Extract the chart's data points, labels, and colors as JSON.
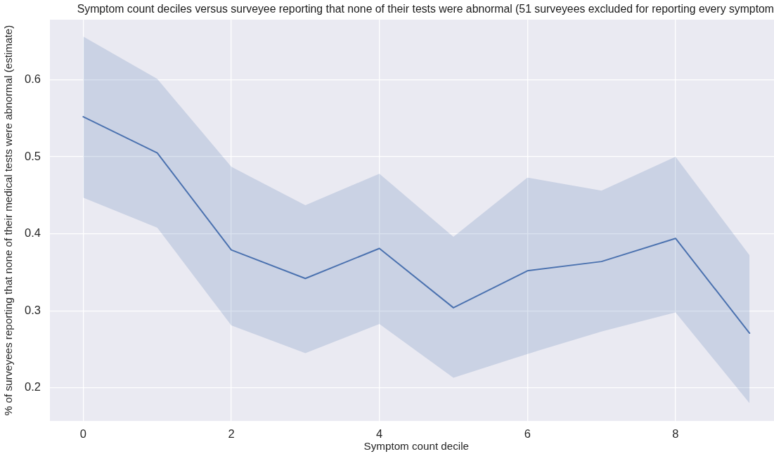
{
  "chart_data": {
    "type": "line",
    "title": "Symptom count deciles versus surveyee reporting that none of their tests were abnormal (51 surveyees excluded for reporting every symptom",
    "xlabel": "Symptom count decile",
    "ylabel": "% of surveyees reporting that none of their medical tests were abnormal (estimate)",
    "x": [
      0,
      1,
      2,
      3,
      4,
      5,
      6,
      7,
      8,
      9
    ],
    "series": [
      {
        "color": "#4c72b0",
        "values": [
          0.552,
          0.505,
          0.379,
          0.342,
          0.381,
          0.304,
          0.352,
          0.364,
          0.394,
          0.271
        ],
        "lower": [
          0.447,
          0.408,
          0.281,
          0.245,
          0.283,
          0.213,
          0.244,
          0.273,
          0.298,
          0.18
        ],
        "upper": [
          0.656,
          0.601,
          0.487,
          0.437,
          0.478,
          0.396,
          0.473,
          0.456,
          0.5,
          0.372
        ]
      }
    ],
    "xlim": [
      -0.45,
      9.33
    ],
    "ylim": [
      0.157,
      0.678
    ],
    "xticks": [
      0,
      2,
      4,
      6,
      8
    ],
    "yticks": [
      0.2,
      0.3,
      0.4,
      0.5,
      0.6
    ],
    "grid": true,
    "legend": false
  }
}
